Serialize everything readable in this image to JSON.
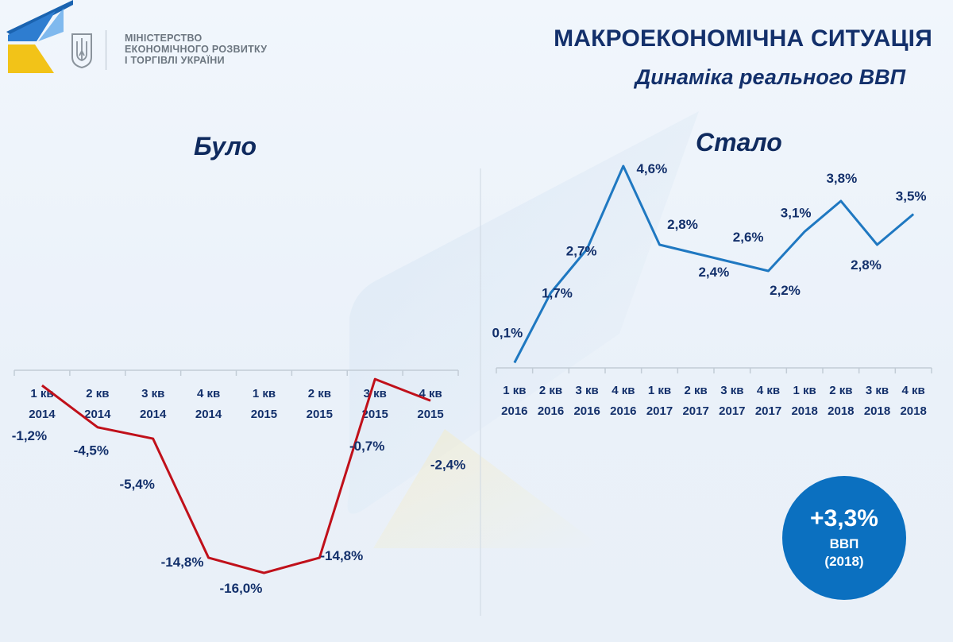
{
  "header": {
    "ministry_lines": [
      "МІНІСТЕРСТВО",
      "ЕКОНОМІЧНОГО РОЗВИТКУ",
      "І ТОРГІВЛІ УКРАЇНИ"
    ],
    "title": "МАКРОЕКОНОМІЧНА СИТУАЦІЯ",
    "subtitle": "Динаміка реального ВВП"
  },
  "badge": {
    "value": "+3,3%",
    "label": "ВВП",
    "year": "(2018)"
  },
  "colors": {
    "before_line": "#c0101a",
    "after_line": "#1f78c1",
    "text": "#13306b",
    "badge": "#0b70c0"
  },
  "chart_data": [
    {
      "type": "line",
      "title": "Було",
      "categories": [
        [
          "1 кв",
          "2014"
        ],
        [
          "2 кв",
          "2014"
        ],
        [
          "3 кв",
          "2014"
        ],
        [
          "4 кв",
          "2014"
        ],
        [
          "1 кв",
          "2015"
        ],
        [
          "2 кв",
          "2015"
        ],
        [
          "3 кв",
          "2015"
        ],
        [
          "4 кв",
          "2015"
        ]
      ],
      "values": [
        -1.2,
        -4.5,
        -5.4,
        -14.8,
        -16.0,
        -14.8,
        -0.7,
        -2.4
      ],
      "labels": [
        "-1,2%",
        "-4,5%",
        "-5,4%",
        "-14,8%",
        "-16,0%",
        "-14,8%",
        "-0,7%",
        "-2,4%"
      ],
      "ylim": [
        -17,
        0
      ],
      "grid": false,
      "legend": "none"
    },
    {
      "type": "line",
      "title": "Стало",
      "categories": [
        [
          "1 кв",
          "2016"
        ],
        [
          "2 кв",
          "2016"
        ],
        [
          "3 кв",
          "2016"
        ],
        [
          "4 кв",
          "2016"
        ],
        [
          "1 кв",
          "2017"
        ],
        [
          "2 кв",
          "2017"
        ],
        [
          "3 кв",
          "2017"
        ],
        [
          "4 кв",
          "2017"
        ],
        [
          "1 кв",
          "2018"
        ],
        [
          "2 кв",
          "2018"
        ],
        [
          "3 кв",
          "2018"
        ],
        [
          "4 кв",
          "2018"
        ]
      ],
      "values": [
        0.1,
        1.7,
        2.7,
        4.6,
        2.8,
        2.6,
        2.4,
        2.2,
        3.1,
        3.8,
        2.8,
        3.5
      ],
      "labels": [
        "0,1%",
        "1,7%",
        "2,7%",
        "4,6%",
        "2,8%",
        "2,6%",
        "2,4%",
        "2,2%",
        "3,1%",
        "3,8%",
        "2,8%",
        "3,5%"
      ],
      "ylim": [
        0,
        5
      ],
      "grid": false,
      "legend": "none"
    }
  ]
}
